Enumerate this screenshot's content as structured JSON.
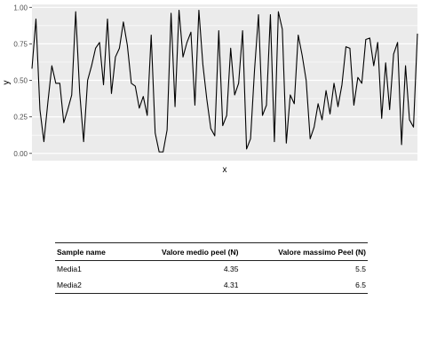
{
  "chart_data": {
    "type": "line",
    "title": "",
    "xlabel": "x",
    "ylabel": "y",
    "ylim": [
      -0.05,
      1.02
    ],
    "yticks": [
      0.0,
      0.25,
      0.5,
      0.75,
      1.0
    ],
    "ytick_labels": [
      "0.00",
      "0.25",
      "0.50",
      "0.75",
      "1.00"
    ],
    "grid": true,
    "background": "#ebebeb",
    "line_color": "#000000",
    "values": [
      0.58,
      0.92,
      0.3,
      0.08,
      0.35,
      0.6,
      0.48,
      0.48,
      0.21,
      0.3,
      0.4,
      0.97,
      0.42,
      0.08,
      0.5,
      0.6,
      0.72,
      0.76,
      0.47,
      0.92,
      0.41,
      0.66,
      0.72,
      0.9,
      0.74,
      0.48,
      0.46,
      0.31,
      0.39,
      0.26,
      0.81,
      0.14,
      0.01,
      0.01,
      0.16,
      0.96,
      0.32,
      0.98,
      0.66,
      0.76,
      0.83,
      0.33,
      0.98,
      0.61,
      0.37,
      0.17,
      0.12,
      0.84,
      0.19,
      0.26,
      0.72,
      0.4,
      0.48,
      0.84,
      0.03,
      0.1,
      0.57,
      0.95,
      0.26,
      0.33,
      0.95,
      0.08,
      0.97,
      0.85,
      0.07,
      0.4,
      0.34,
      0.81,
      0.67,
      0.5,
      0.1,
      0.18,
      0.34,
      0.23,
      0.43,
      0.27,
      0.48,
      0.32,
      0.47,
      0.73,
      0.72,
      0.33,
      0.52,
      0.48,
      0.78,
      0.79,
      0.6,
      0.76,
      0.24,
      0.62,
      0.3,
      0.68,
      0.76,
      0.06,
      0.6,
      0.23,
      0.18,
      0.82
    ]
  },
  "table": {
    "headers": [
      "Sample name",
      "Valore medio peel (N)",
      "Valore massimo Peel (N)"
    ],
    "rows": [
      [
        "Media1",
        "4.35",
        "5.5"
      ],
      [
        "Media2",
        "4.31",
        "6.5"
      ]
    ]
  }
}
